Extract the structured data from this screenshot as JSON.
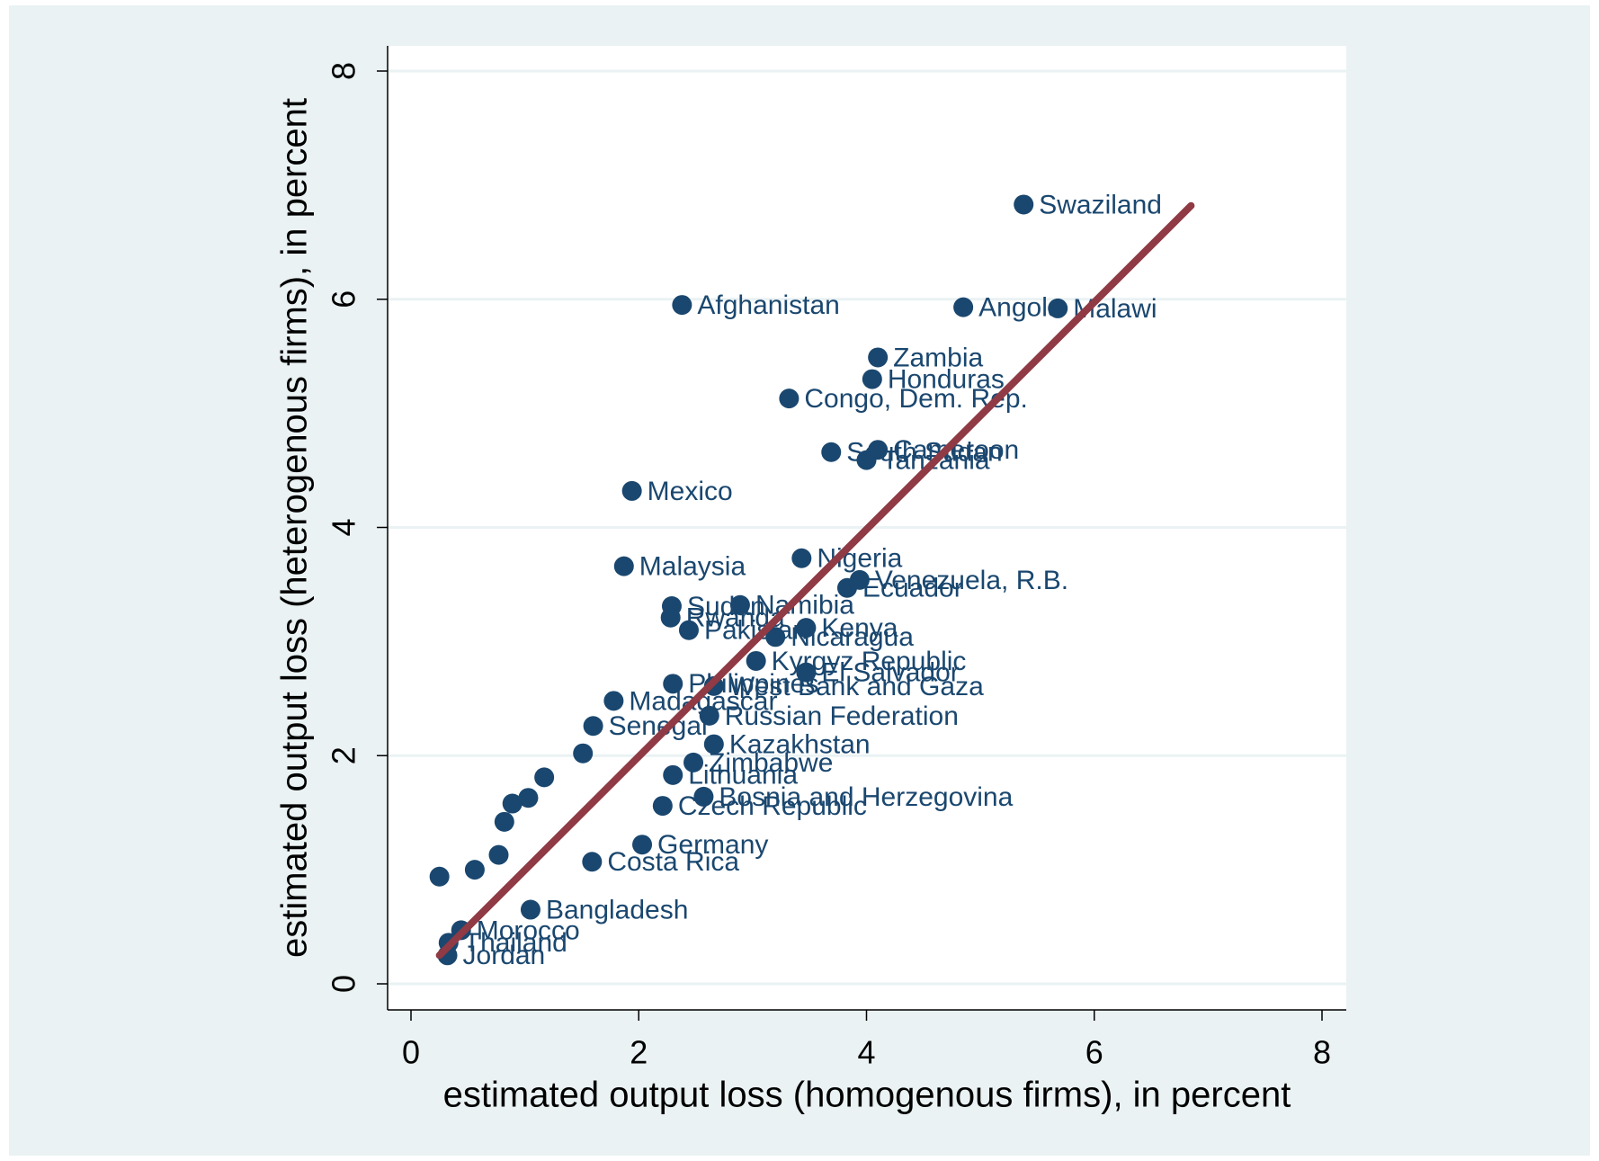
{
  "chart_data": {
    "type": "scatter",
    "xlabel": "estimated output loss (homogenous firms), in percent",
    "ylabel": "estimated output loss (heterogenous firms), in percent",
    "xlim": [
      0,
      8
    ],
    "ylim": [
      0,
      8
    ],
    "xticks": [
      0,
      2,
      4,
      6,
      8
    ],
    "yticks": [
      0,
      2,
      4,
      6,
      8
    ],
    "grid": true,
    "series": [
      {
        "color": "#1a476f",
        "labels": [
          "Swaziland",
          "Afghanistan",
          "Angola",
          "Malawi",
          "Zambia",
          "Honduras",
          "Congo, Dem. Rep.",
          "South Sudan",
          "Cameroon",
          "Tanzania",
          "Mexico",
          "Malaysia",
          "Nigeria",
          "Venezuela, R.B.",
          "Ecuador",
          "Sudan",
          "Namibia",
          "Rwanda",
          "Kenya",
          "Nicaragua",
          "Pakistan",
          "Kyrgyz Republic",
          "El Salvador",
          "Philippines",
          "West Bank and Gaza",
          "Russian Federation",
          "Senegal",
          "Madagascar",
          "Kazakhstan",
          "Zimbabwe",
          "Lithuania",
          "Bosnia and Herzegovina",
          "Czech Republic",
          "Germany",
          "Costa Rica",
          "Bangladesh",
          "Morocco",
          "Thailand",
          "Jordan",
          null,
          null,
          null,
          null,
          null,
          null,
          null,
          null
        ],
        "x": [
          5.38,
          2.38,
          4.85,
          5.68,
          4.1,
          4.05,
          3.32,
          3.69,
          4.1,
          4.0,
          1.94,
          1.87,
          3.43,
          3.94,
          3.83,
          2.29,
          2.89,
          2.28,
          3.47,
          3.2,
          2.44,
          3.03,
          3.47,
          2.3,
          2.66,
          2.62,
          1.6,
          1.78,
          2.66,
          2.48,
          2.3,
          2.57,
          2.21,
          2.03,
          1.59,
          1.05,
          0.44,
          0.33,
          0.32,
          0.25,
          0.56,
          0.77,
          1.03,
          0.89,
          1.17,
          1.51,
          0.82
        ],
        "y": [
          6.83,
          5.95,
          5.93,
          5.92,
          5.49,
          5.3,
          5.13,
          4.66,
          4.68,
          4.59,
          4.32,
          3.66,
          3.73,
          3.54,
          3.47,
          3.31,
          3.32,
          3.21,
          3.12,
          3.04,
          3.1,
          2.83,
          2.73,
          2.63,
          2.61,
          2.35,
          2.26,
          2.48,
          2.1,
          1.94,
          1.83,
          1.64,
          1.56,
          1.22,
          1.07,
          0.65,
          0.47,
          0.36,
          0.25,
          0.94,
          1.0,
          1.13,
          1.63,
          1.58,
          1.81,
          2.02,
          1.42
        ]
      }
    ],
    "fit_line": {
      "color": "#8f3a44",
      "x": [
        0.25,
        6.85
      ],
      "y": [
        0.25,
        6.82
      ]
    }
  }
}
